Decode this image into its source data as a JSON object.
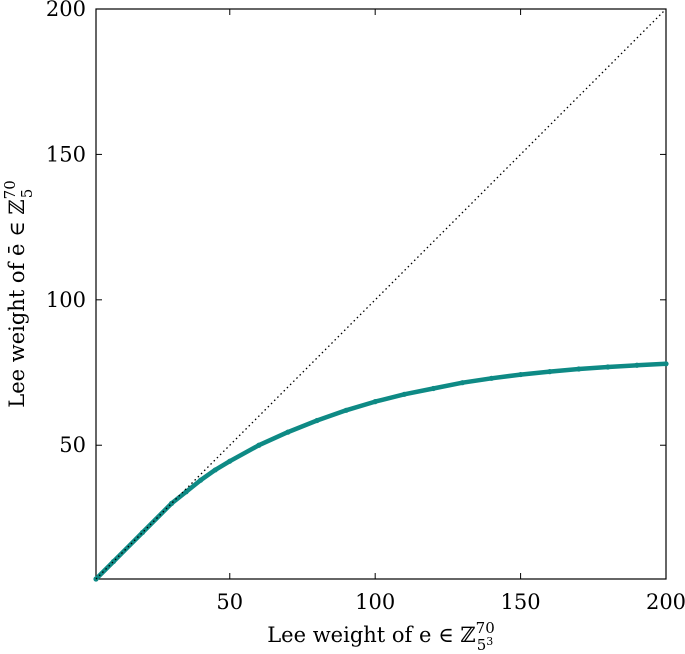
{
  "chart_data": {
    "type": "line",
    "title": "",
    "xlabel": "Lee weight of e ∈ ℤ",
    "xlabel_sup": "70",
    "xlabel_sub": "5",
    "xlabel_subsup": "3",
    "ylabel": "Lee weight of ē ∈ ℤ",
    "ylabel_sup": "70",
    "ylabel_sub": "5",
    "xlim": [
      4,
      200
    ],
    "ylim": [
      4,
      200
    ],
    "x_ticks": [
      50,
      100,
      150,
      200
    ],
    "x_tick_labels": [
      "50",
      "100",
      "150",
      "200"
    ],
    "y_ticks": [
      50,
      100,
      150,
      200
    ],
    "y_tick_labels": [
      "50",
      "100",
      "150",
      "200"
    ],
    "grid": false,
    "legend": "none",
    "series": [
      {
        "style": "solid",
        "color": "#0e8a85",
        "x": [
          4,
          10,
          20,
          30,
          35,
          40,
          45,
          50,
          60,
          70,
          80,
          90,
          100,
          110,
          120,
          130,
          140,
          150,
          160,
          170,
          180,
          190,
          200
        ],
        "y": [
          4,
          10,
          20,
          30,
          34,
          38,
          41.5,
          44.5,
          50,
          54.5,
          58.5,
          62,
          65,
          67.5,
          69.5,
          71.5,
          73,
          74.3,
          75.3,
          76.2,
          76.9,
          77.5,
          78
        ]
      },
      {
        "style": "dotted",
        "color": "#000000",
        "x": [
          4,
          200
        ],
        "y": [
          4,
          200
        ]
      }
    ]
  }
}
